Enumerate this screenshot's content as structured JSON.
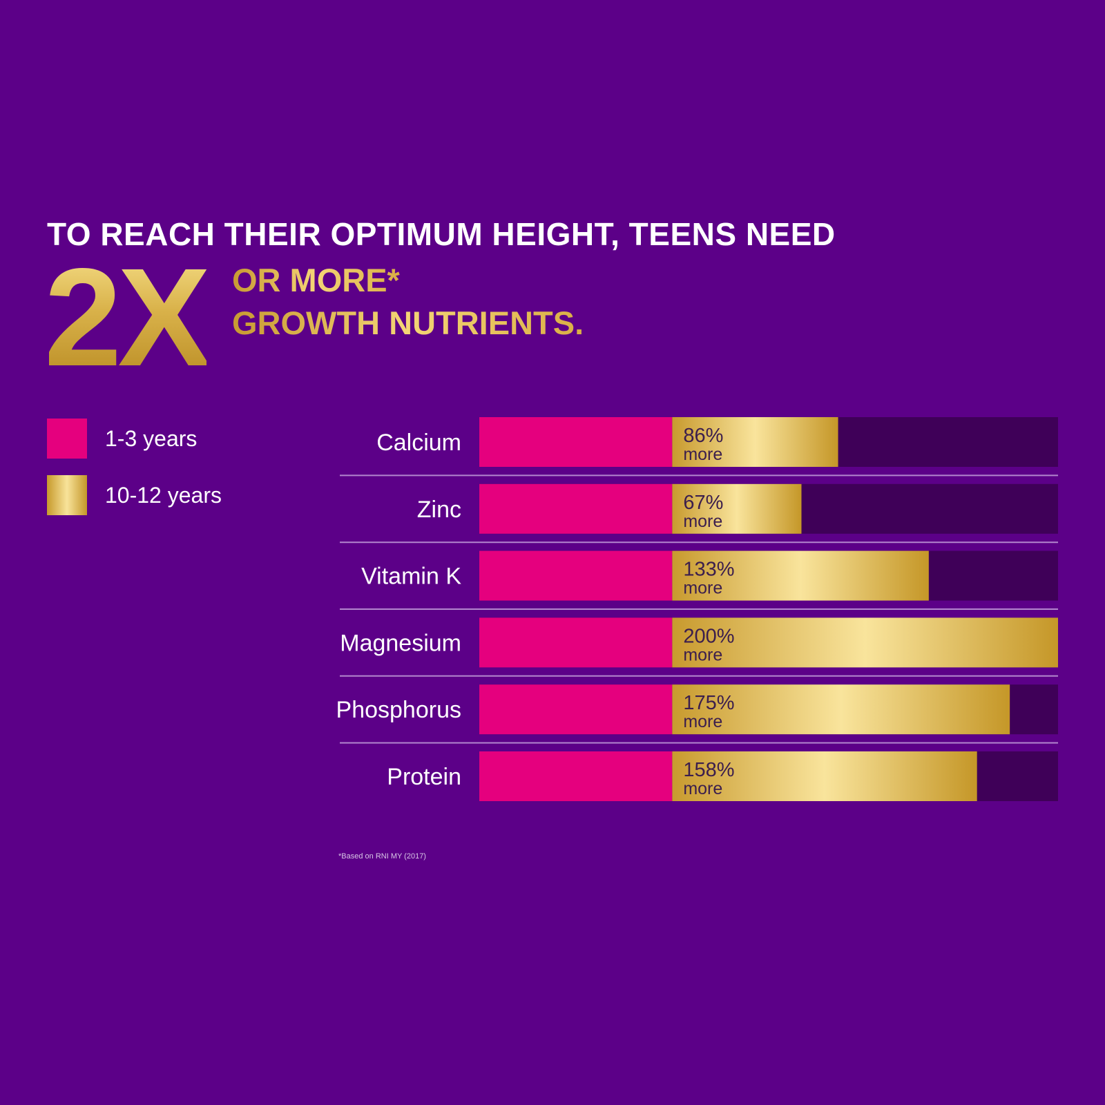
{
  "headline": {
    "line1": "TO REACH THEIR OPTIMUM HEIGHT, TEENS NEED",
    "big": "2X",
    "line2": "OR MORE*",
    "line3": "GROWTH NUTRIENTS."
  },
  "legend": [
    {
      "label": "1-3 years",
      "color": "#e5007e"
    },
    {
      "label": "10-12 years",
      "color": "gold-gradient"
    }
  ],
  "colors": {
    "background": "#5c0088",
    "track": "#3f0058",
    "pink": "#e5007e",
    "gold_light": "#f8e39a",
    "gold_dark": "#c49629",
    "divider": "#c9a9e0"
  },
  "chart_data": {
    "type": "bar",
    "orientation": "horizontal",
    "stacked": true,
    "categories": [
      "Calcium",
      "Zinc",
      "Vitamin K",
      "Magnesium",
      "Phosphorus",
      "Protein"
    ],
    "series": [
      {
        "name": "1-3 years",
        "values": [
          100,
          100,
          100,
          100,
          100,
          100
        ]
      },
      {
        "name": "10-12 years",
        "values": [
          86,
          67,
          133,
          200,
          175,
          158
        ]
      }
    ],
    "data_labels": [
      "86%",
      "67%",
      "133%",
      "200%",
      "175%",
      "158%"
    ],
    "data_label_suffix": "more",
    "xlim": [
      0,
      300
    ],
    "legend_position": "top-left"
  },
  "footnote": "*Based on RNI MY (2017)"
}
